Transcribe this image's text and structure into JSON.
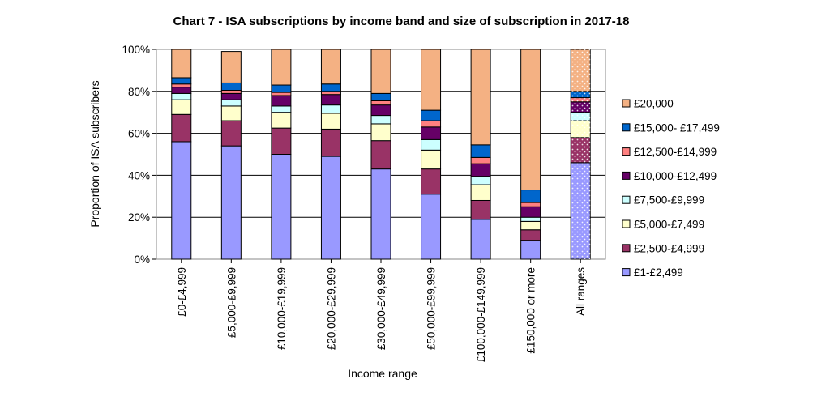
{
  "chart_data": {
    "type": "bar",
    "stacked": true,
    "title": "Chart 7 - ISA subscriptions by income band and size of subscription in 2017-18",
    "xlabel": "Income range",
    "ylabel": "Proportion of ISA subscribers",
    "ylim": [
      0,
      100
    ],
    "yticks": [
      "0%",
      "20%",
      "40%",
      "60%",
      "80%",
      "100%"
    ],
    "grid": true,
    "legend_position": "right",
    "categories": [
      "£0-£4,999",
      "£5,000-£9,999",
      "£10,000-£19,999",
      "£20,000-£29,999",
      "£30,000-£49,999",
      "£50,000-£99,999",
      "£100,000-£149,999",
      "£150,000 or more",
      "All ranges"
    ],
    "series": [
      {
        "name": "£1-£2,499",
        "color": "#9999ff",
        "values": [
          56,
          54,
          50,
          49,
          43,
          31,
          19,
          9,
          46
        ]
      },
      {
        "name": "£2,500-£4,999",
        "color": "#993366",
        "values": [
          13,
          12,
          12.5,
          13,
          13.5,
          12,
          9,
          5,
          12
        ]
      },
      {
        "name": "£5,000-£7,499",
        "color": "#ffffcc",
        "values": [
          7,
          7,
          7.5,
          7.5,
          8,
          9,
          7.5,
          4,
          8
        ]
      },
      {
        "name": "£7,500-£9,999",
        "color": "#ccffff",
        "values": [
          3,
          3,
          3,
          4,
          4,
          5,
          4,
          2,
          4
        ]
      },
      {
        "name": "£10,000-£12,499",
        "color": "#660066",
        "values": [
          3,
          3,
          5,
          5,
          5,
          6,
          6,
          5,
          5
        ]
      },
      {
        "name": "£12,500-£14,999",
        "color": "#ff8080",
        "values": [
          1.5,
          1.5,
          1.5,
          1.5,
          2,
          3,
          3,
          2,
          2
        ]
      },
      {
        "name": "£15,000- £17,499",
        "color": "#0066cc",
        "values": [
          3,
          3.5,
          3.5,
          3.5,
          3.5,
          5,
          6,
          6,
          3
        ]
      },
      {
        "name": "£20,000",
        "color": "#f4b183",
        "values": [
          13.5,
          15,
          17,
          16.5,
          21,
          29,
          45.5,
          67,
          20
        ]
      }
    ]
  }
}
